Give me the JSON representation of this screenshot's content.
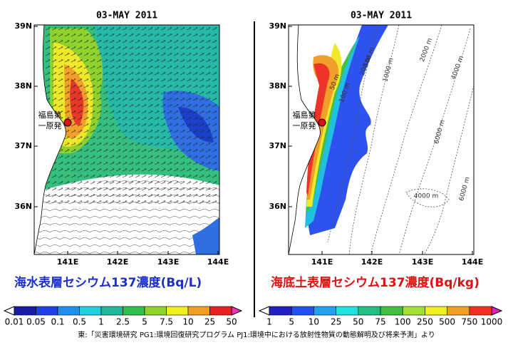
{
  "panels": [
    {
      "title": "03-MAY 2011",
      "caption": "海水表層セシウム137濃度(Bq/L)",
      "colorbar": [
        0.01,
        0.05,
        0.1,
        0.5,
        1,
        2.5,
        5,
        7.5,
        10,
        25,
        50
      ]
    },
    {
      "title": "03-MAY 2011",
      "caption": "海底土表層セシウム137濃度(Bq/kg)",
      "colorbar": [
        1,
        5,
        10,
        25,
        50,
        75,
        100,
        250,
        500,
        750,
        1000
      ],
      "contour_labels": [
        "200 m",
        "500 m",
        "1000 m",
        "2000 m",
        "4000 m",
        "50 m",
        "100 m",
        "6000 m",
        "4000 m",
        "6000 m"
      ]
    }
  ],
  "lat_labels": [
    "39N",
    "38N",
    "37N",
    "36N"
  ],
  "lon_labels": [
    "141E",
    "142E",
    "143E",
    "144E"
  ],
  "plant_label": [
    "福島第",
    "一原発"
  ],
  "source": "東:「災害環境研究 PG1:環境回復研究プログラム PJ1:環境中における放射性物質の動態解明及び将来予測」より"
}
